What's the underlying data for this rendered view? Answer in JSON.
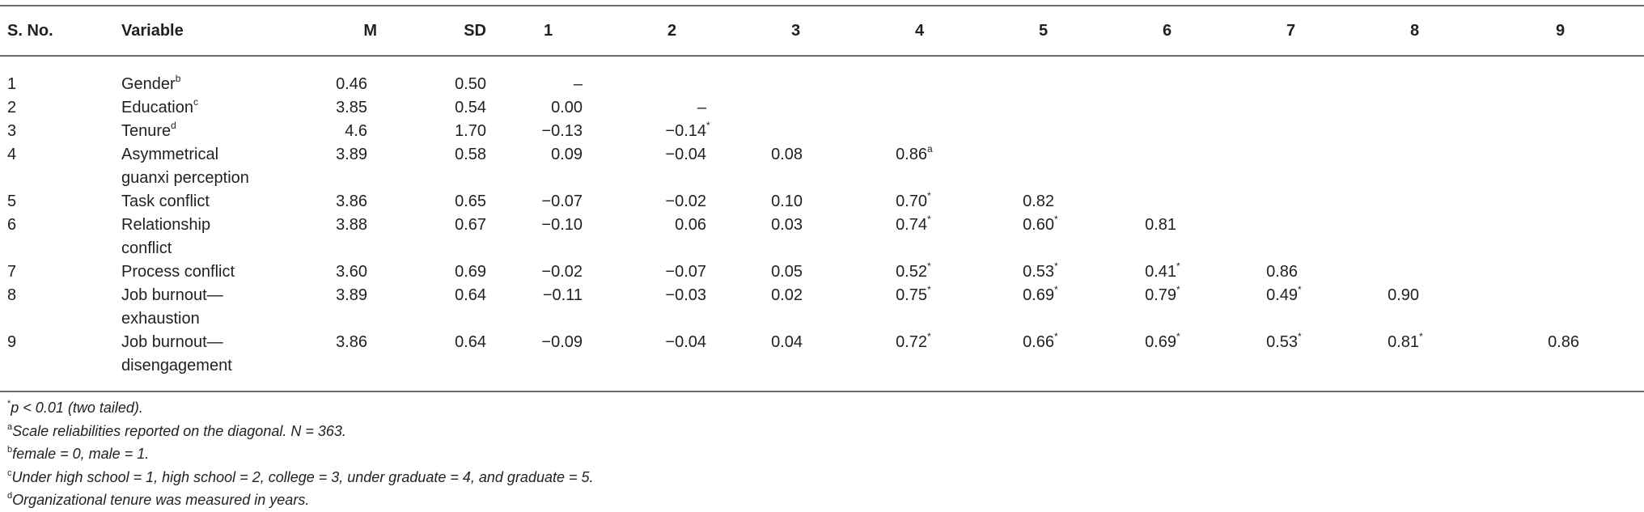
{
  "table": {
    "headers": {
      "sno": "S. No.",
      "variable": "Variable",
      "m": "M",
      "sd": "SD",
      "cols": [
        "1",
        "2",
        "3",
        "4",
        "5",
        "6",
        "7",
        "8",
        "9"
      ]
    },
    "rows": [
      {
        "sno": "1",
        "var1": "Gender",
        "var_sup": "b",
        "var2": "",
        "m": "0.46",
        "sd": "0.50",
        "vals": [
          {
            "v": "–",
            "s": ""
          },
          {
            "v": "",
            "s": ""
          },
          {
            "v": "",
            "s": ""
          },
          {
            "v": "",
            "s": ""
          },
          {
            "v": "",
            "s": ""
          },
          {
            "v": "",
            "s": ""
          },
          {
            "v": "",
            "s": ""
          },
          {
            "v": "",
            "s": ""
          },
          {
            "v": "",
            "s": ""
          }
        ]
      },
      {
        "sno": "2",
        "var1": "Education",
        "var_sup": "c",
        "var2": "",
        "m": "3.85",
        "sd": "0.54",
        "vals": [
          {
            "v": "0.00",
            "s": ""
          },
          {
            "v": "–",
            "s": ""
          },
          {
            "v": "",
            "s": ""
          },
          {
            "v": "",
            "s": ""
          },
          {
            "v": "",
            "s": ""
          },
          {
            "v": "",
            "s": ""
          },
          {
            "v": "",
            "s": ""
          },
          {
            "v": "",
            "s": ""
          },
          {
            "v": "",
            "s": ""
          }
        ]
      },
      {
        "sno": "3",
        "var1": "Tenure",
        "var_sup": "d",
        "var2": "",
        "m": "4.6",
        "sd": "1.70",
        "vals": [
          {
            "v": "−0.13",
            "s": ""
          },
          {
            "v": "−0.14",
            "s": "*"
          },
          {
            "v": "",
            "s": ""
          },
          {
            "v": "",
            "s": ""
          },
          {
            "v": "",
            "s": ""
          },
          {
            "v": "",
            "s": ""
          },
          {
            "v": "",
            "s": ""
          },
          {
            "v": "",
            "s": ""
          },
          {
            "v": "",
            "s": ""
          }
        ]
      },
      {
        "sno": "4",
        "var1": "Asymmetrical",
        "var_sup": "",
        "var2": "guanxi perception",
        "m": "3.89",
        "sd": "0.58",
        "vals": [
          {
            "v": "0.09",
            "s": ""
          },
          {
            "v": "−0.04",
            "s": ""
          },
          {
            "v": "0.08",
            "s": ""
          },
          {
            "v": "0.86",
            "s": "a"
          },
          {
            "v": "",
            "s": ""
          },
          {
            "v": "",
            "s": ""
          },
          {
            "v": "",
            "s": ""
          },
          {
            "v": "",
            "s": ""
          },
          {
            "v": "",
            "s": ""
          }
        ]
      },
      {
        "sno": "5",
        "var1": "Task conflict",
        "var_sup": "",
        "var2": "",
        "m": "3.86",
        "sd": "0.65",
        "vals": [
          {
            "v": "−0.07",
            "s": ""
          },
          {
            "v": "−0.02",
            "s": ""
          },
          {
            "v": "0.10",
            "s": ""
          },
          {
            "v": "0.70",
            "s": "*"
          },
          {
            "v": "0.82",
            "s": ""
          },
          {
            "v": "",
            "s": ""
          },
          {
            "v": "",
            "s": ""
          },
          {
            "v": "",
            "s": ""
          },
          {
            "v": "",
            "s": ""
          }
        ]
      },
      {
        "sno": "6",
        "var1": "Relationship",
        "var_sup": "",
        "var2": "conflict",
        "m": "3.88",
        "sd": "0.67",
        "vals": [
          {
            "v": "−0.10",
            "s": ""
          },
          {
            "v": "0.06",
            "s": ""
          },
          {
            "v": "0.03",
            "s": ""
          },
          {
            "v": "0.74",
            "s": "*"
          },
          {
            "v": "0.60",
            "s": "*"
          },
          {
            "v": "0.81",
            "s": ""
          },
          {
            "v": "",
            "s": ""
          },
          {
            "v": "",
            "s": ""
          },
          {
            "v": "",
            "s": ""
          }
        ]
      },
      {
        "sno": "7",
        "var1": "Process conflict",
        "var_sup": "",
        "var2": "",
        "m": "3.60",
        "sd": "0.69",
        "vals": [
          {
            "v": "−0.02",
            "s": ""
          },
          {
            "v": "−0.07",
            "s": ""
          },
          {
            "v": "0.05",
            "s": ""
          },
          {
            "v": "0.52",
            "s": "*"
          },
          {
            "v": "0.53",
            "s": "*"
          },
          {
            "v": "0.41",
            "s": "*"
          },
          {
            "v": "0.86",
            "s": ""
          },
          {
            "v": "",
            "s": ""
          },
          {
            "v": "",
            "s": ""
          }
        ]
      },
      {
        "sno": "8",
        "var1": "Job burnout—",
        "var_sup": "",
        "var2": "exhaustion",
        "m": "3.89",
        "sd": "0.64",
        "vals": [
          {
            "v": "−0.11",
            "s": ""
          },
          {
            "v": "−0.03",
            "s": ""
          },
          {
            "v": "0.02",
            "s": ""
          },
          {
            "v": "0.75",
            "s": "*"
          },
          {
            "v": "0.69",
            "s": "*"
          },
          {
            "v": "0.79",
            "s": "*"
          },
          {
            "v": "0.49",
            "s": "*"
          },
          {
            "v": "0.90",
            "s": ""
          },
          {
            "v": "",
            "s": ""
          }
        ]
      },
      {
        "sno": "9",
        "var1": "Job burnout—",
        "var_sup": "",
        "var2": "disengagement",
        "m": "3.86",
        "sd": "0.64",
        "vals": [
          {
            "v": "−0.09",
            "s": ""
          },
          {
            "v": "−0.04",
            "s": ""
          },
          {
            "v": "0.04",
            "s": ""
          },
          {
            "v": "0.72",
            "s": "*"
          },
          {
            "v": "0.66",
            "s": "*"
          },
          {
            "v": "0.69",
            "s": "*"
          },
          {
            "v": "0.53",
            "s": "*"
          },
          {
            "v": "0.81",
            "s": "*"
          },
          {
            "v": "0.86",
            "s": ""
          }
        ]
      }
    ]
  },
  "notes": [
    {
      "sup": "*",
      "text": "p < 0.01 (two tailed)."
    },
    {
      "sup": "a",
      "text": "Scale reliabilities reported on the diagonal. N = 363."
    },
    {
      "sup": "b",
      "text": "female = 0, male = 1."
    },
    {
      "sup": "c",
      "text": "Under high school = 1, high school = 2, college = 3, under graduate = 4, and graduate = 5."
    },
    {
      "sup": "d",
      "text": "Organizational tenure was measured in years."
    }
  ]
}
